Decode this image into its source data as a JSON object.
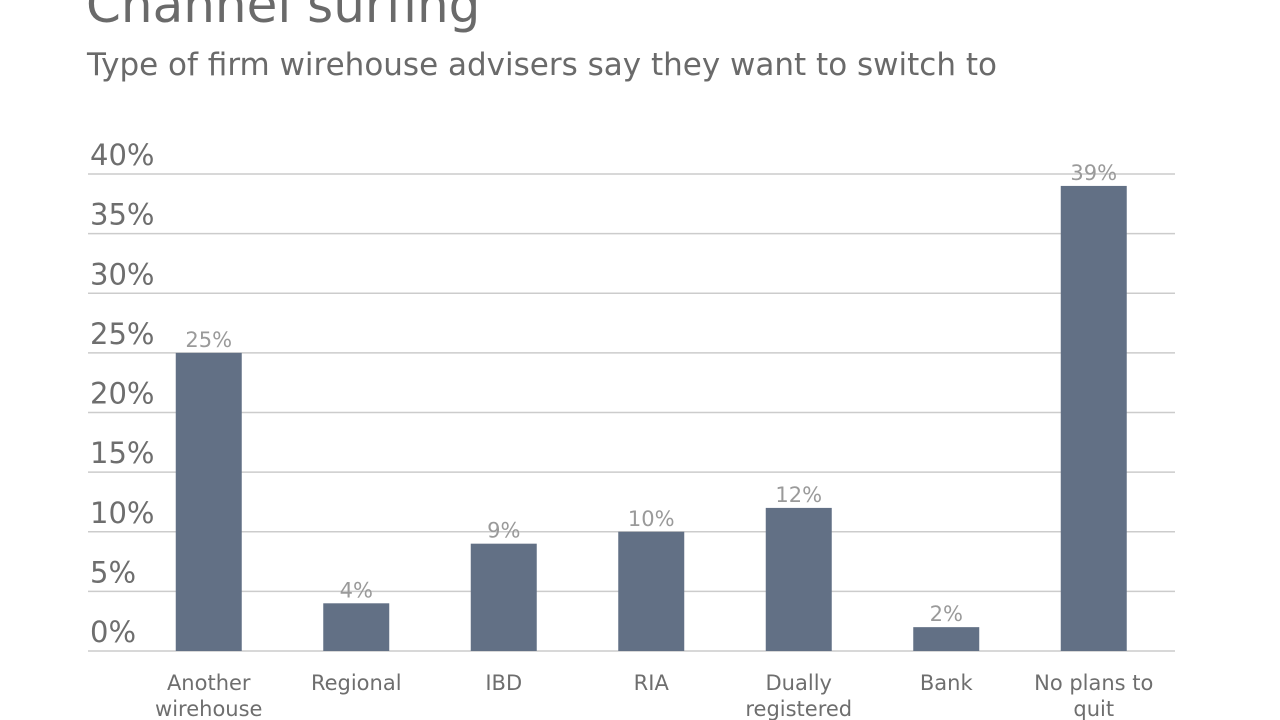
{
  "header": {
    "title": "Channel surfing",
    "subtitle": "Type of firm wirehouse advisers say they want to switch to"
  },
  "chart_data": {
    "type": "bar",
    "title": "Channel surfing",
    "subtitle": "Type of firm wirehouse advisers say they want to switch to",
    "categories": [
      [
        "Another",
        "wirehouse"
      ],
      [
        "Regional"
      ],
      [
        "IBD"
      ],
      [
        "RIA"
      ],
      [
        "Dually",
        "registered"
      ],
      [
        "Bank"
      ],
      [
        "No plans to",
        "quit"
      ]
    ],
    "values": [
      25,
      4,
      9,
      10,
      12,
      2,
      39
    ],
    "data_labels": [
      "25%",
      "4%",
      "9%",
      "10%",
      "12%",
      "2%",
      "39%"
    ],
    "y_ticks": [
      0,
      5,
      10,
      15,
      20,
      25,
      30,
      35,
      40
    ],
    "y_tick_labels": [
      "0%",
      "5%",
      "10%",
      "15%",
      "20%",
      "25%",
      "30%",
      "35%",
      "40%"
    ],
    "ylim": [
      0,
      40
    ],
    "grid": true,
    "legend": "none",
    "bar_color": "#627085",
    "grid_color": "#cccccc"
  }
}
